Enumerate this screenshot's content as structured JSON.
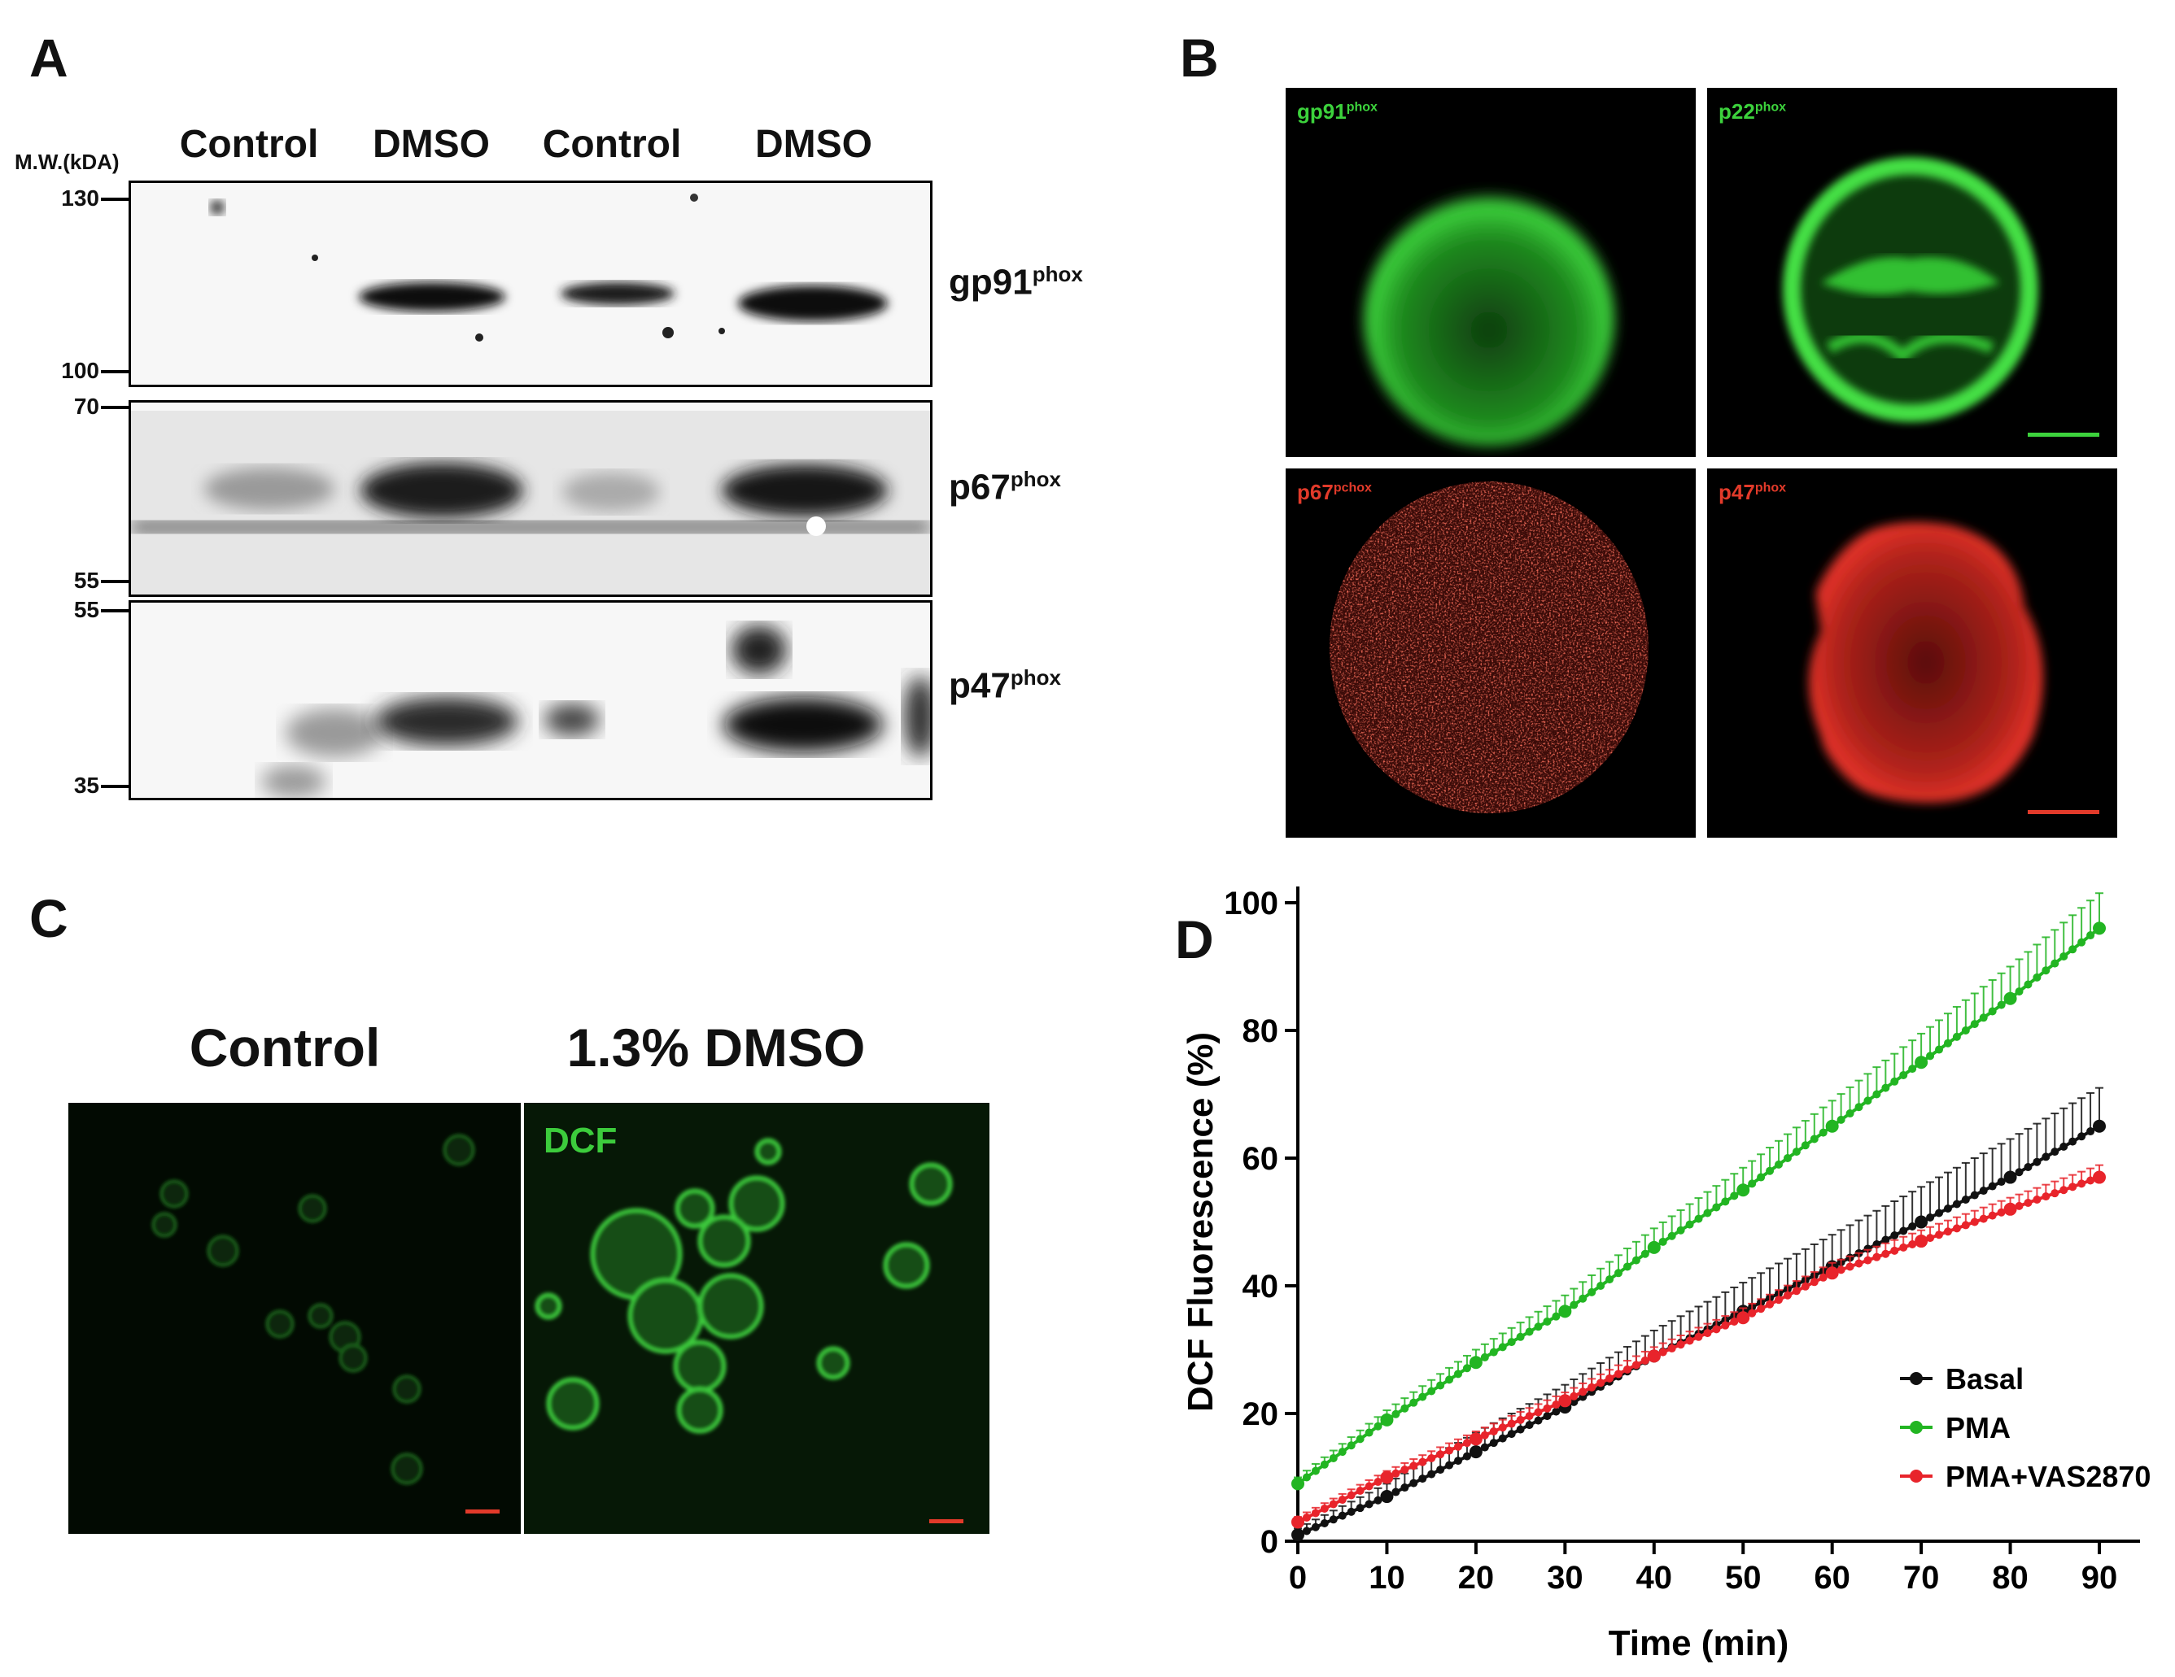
{
  "panels": {
    "a": "A",
    "b": "B",
    "c": "C",
    "d": "D"
  },
  "blot": {
    "mw_header": "M.W.(kDA)",
    "lanes": [
      "Control",
      "DMSO",
      "Control",
      "DMSO"
    ],
    "strips": [
      {
        "protein": "gp91",
        "sup": "phox",
        "mw_top": "130",
        "mw_bottom": "100"
      },
      {
        "protein": "p67",
        "sup": "phox",
        "mw_top": "70",
        "mw_bottom": "55"
      },
      {
        "protein": "p47",
        "sup": "phox",
        "mw_top": "55",
        "mw_bottom": "35"
      }
    ]
  },
  "fluor_b": [
    {
      "name": "gp91",
      "sup": "phox",
      "color": "#3cd23c"
    },
    {
      "name": "p22",
      "sup": "phox",
      "color": "#3cd23c"
    },
    {
      "name": "p67",
      "sup": "pchox",
      "color": "#e23a2a"
    },
    {
      "name": "p47",
      "sup": "phox",
      "color": "#e23a2a"
    }
  ],
  "panel_c": {
    "titles": [
      "Control",
      "1.3% DMSO"
    ],
    "label": "DCF"
  },
  "chart_data": {
    "type": "line",
    "xlabel": "Time (min)",
    "ylabel": "DCF Fluorescence (%)",
    "xlim": [
      0,
      90
    ],
    "ylim": [
      0,
      100
    ],
    "xticks": [
      0,
      10,
      20,
      30,
      40,
      50,
      60,
      70,
      80,
      90
    ],
    "yticks": [
      0,
      20,
      40,
      60,
      80,
      100
    ],
    "legend_position": "bottom-right",
    "x": [
      0,
      10,
      20,
      30,
      40,
      50,
      60,
      70,
      80,
      90
    ],
    "series": [
      {
        "name": "Basal",
        "color": "#111111",
        "values": [
          1,
          7,
          14,
          21,
          29,
          36,
          43,
          50,
          57,
          65
        ],
        "error": [
          1,
          2,
          3,
          3.5,
          4,
          4.5,
          5,
          5.5,
          6,
          6
        ]
      },
      {
        "name": "PMA",
        "color": "#22b522",
        "values": [
          9,
          19,
          28,
          36,
          46,
          55,
          65,
          75,
          85,
          96
        ],
        "error": [
          1,
          1.5,
          2,
          2.5,
          3,
          3.5,
          4,
          4.5,
          5,
          5.5
        ]
      },
      {
        "name": "PMA+VAS2870",
        "color": "#e8242b",
        "values": [
          3,
          10,
          16,
          22,
          29,
          35,
          42,
          47,
          52,
          57
        ],
        "error": [
          0.8,
          1,
          1.2,
          1.3,
          1.4,
          1.5,
          1.6,
          1.7,
          1.8,
          1.9
        ]
      }
    ]
  }
}
